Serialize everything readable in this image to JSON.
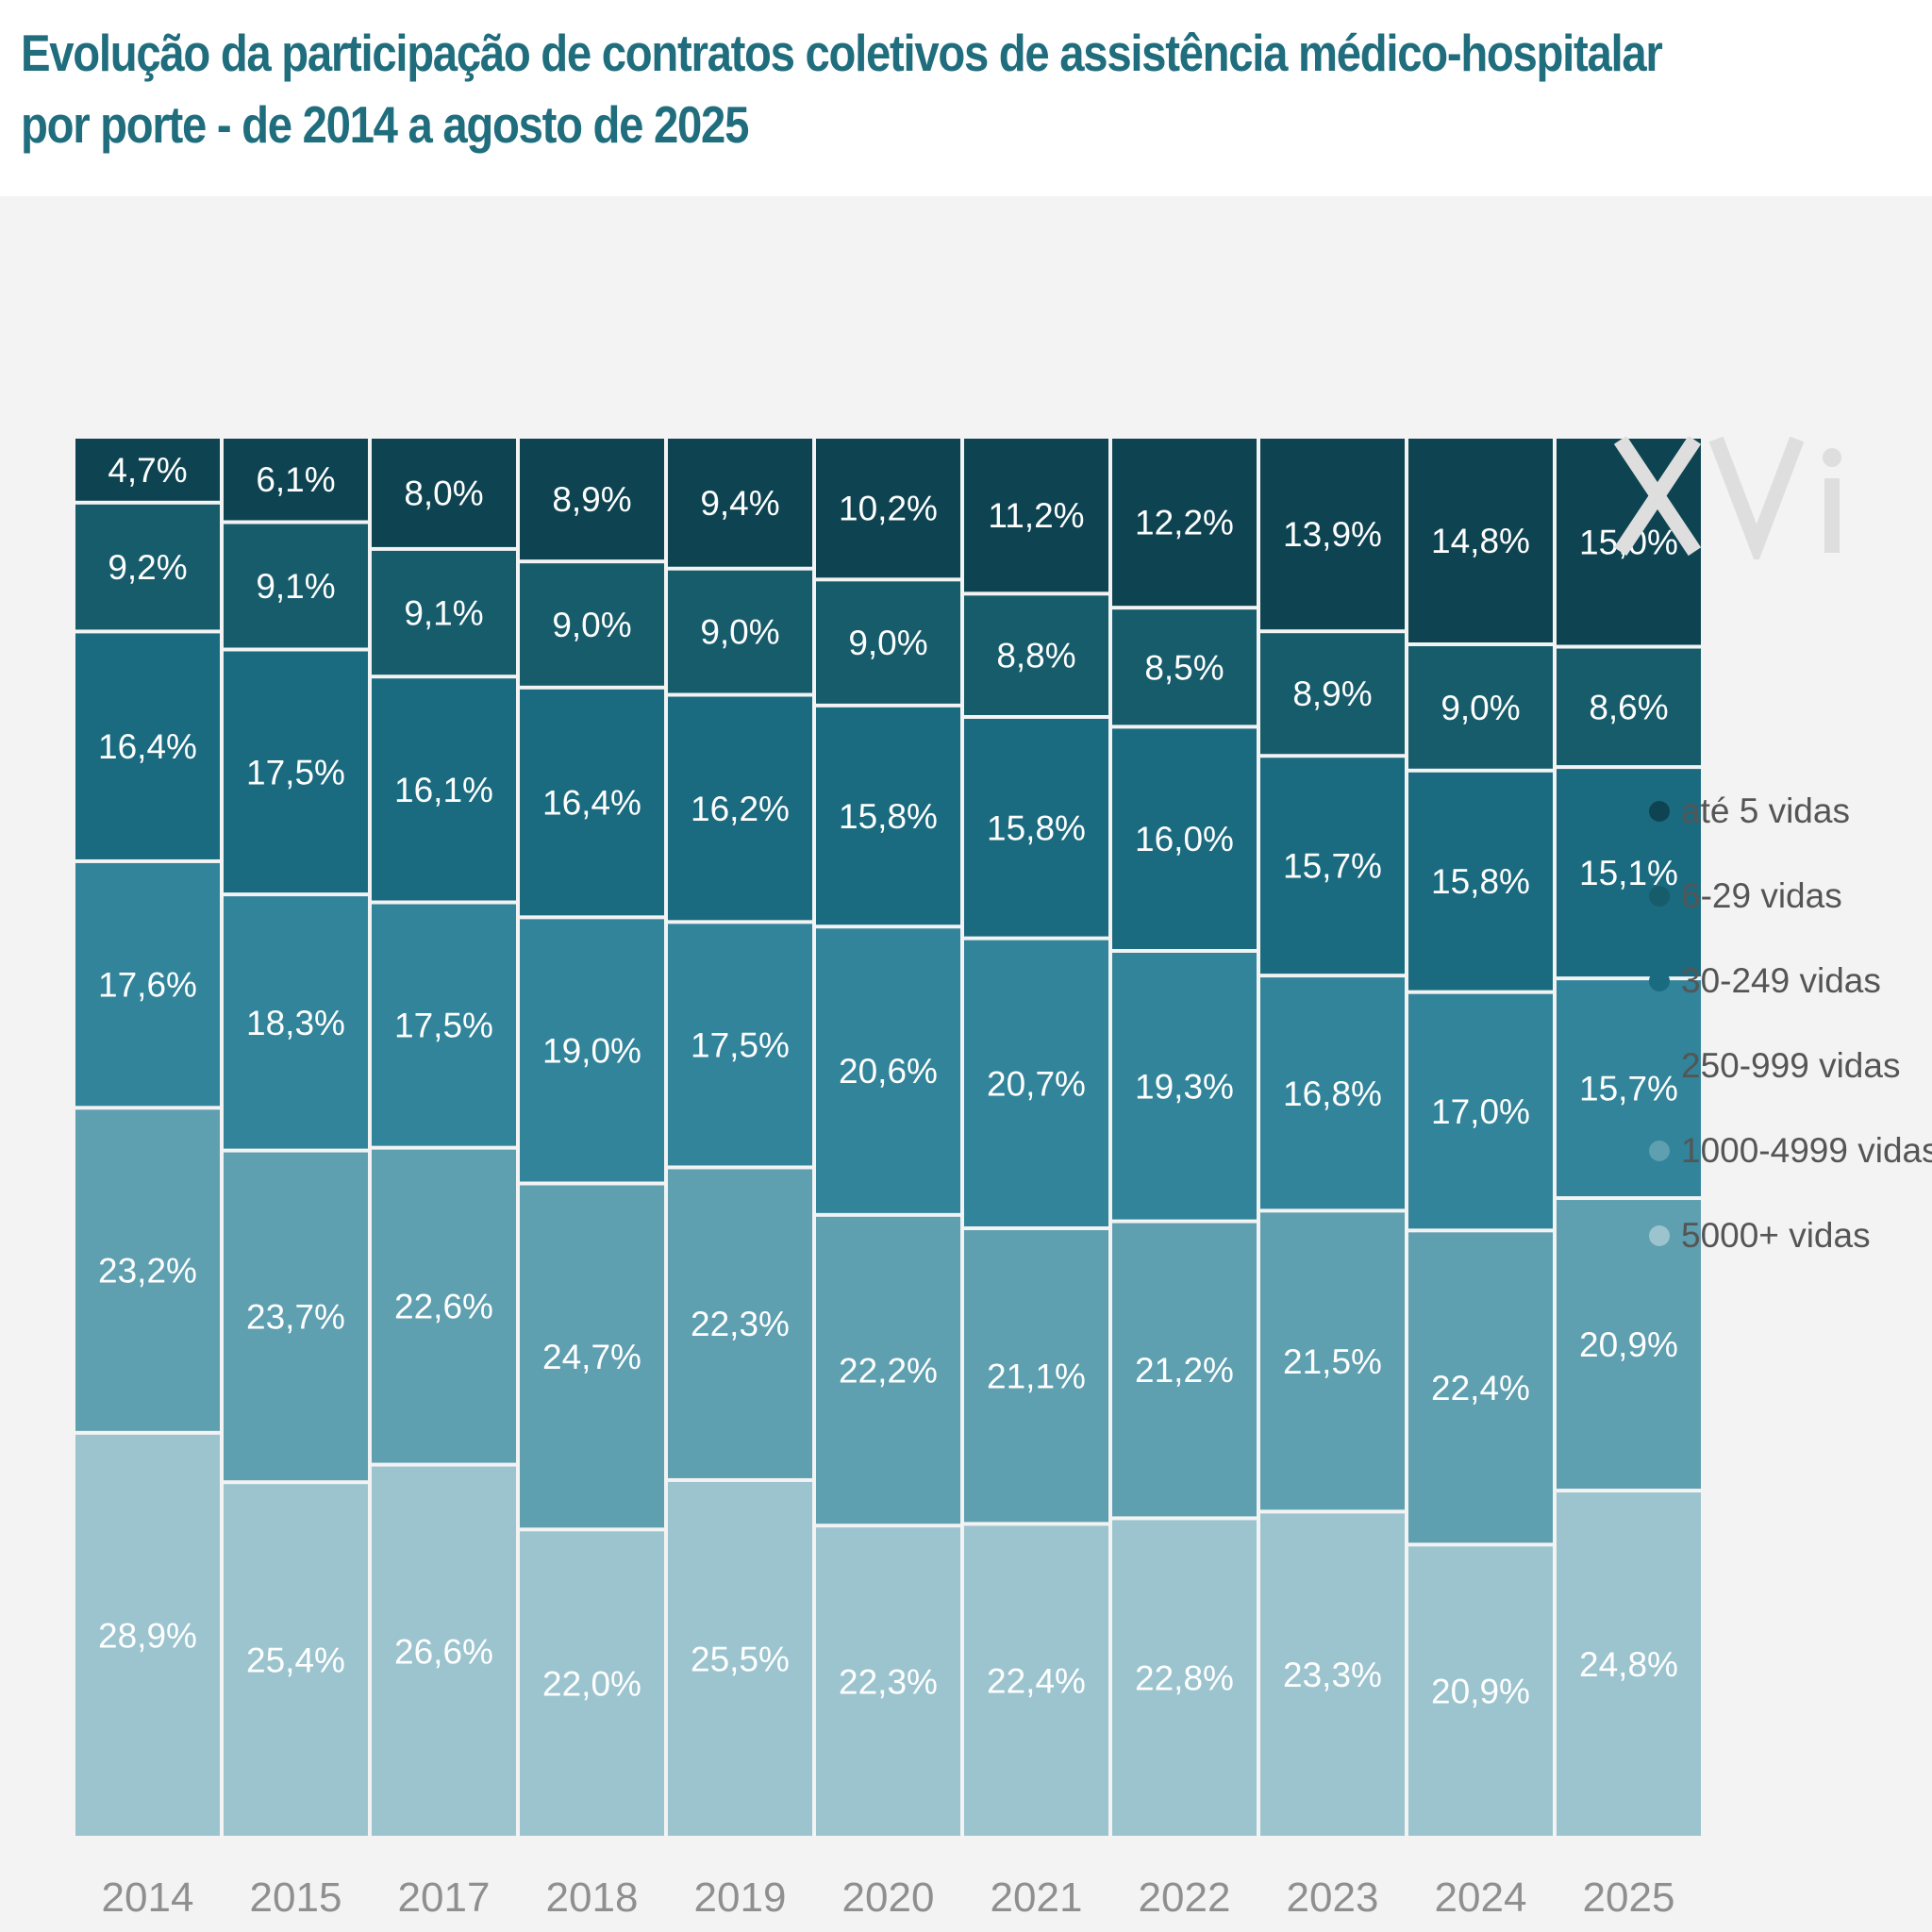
{
  "title": {
    "line1": "Evolução da participação de contratos coletivos de assistência médico-hospitalar",
    "line2": "por porte - de 2014 a agosto de 2025"
  },
  "watermark": "XVi",
  "colors": {
    "background": "#ffffff",
    "panel": "#f3f3f3",
    "title": "#1f6d7d",
    "value_labels": "#ffffff",
    "year_labels": "#8f8f8f"
  },
  "chart_data": {
    "type": "bar",
    "stacked": true,
    "normalized_percent": true,
    "title": "Evolução da participação de contratos coletivos de assistência médico-hospitalar por porte - de 2014 a agosto de 2025",
    "xlabel": "",
    "ylabel": "",
    "ylim": [
      0,
      100
    ],
    "grid": false,
    "legend_position": "right",
    "categories": [
      "2014",
      "2015",
      "2017",
      "2018",
      "2019",
      "2020",
      "2021",
      "2022",
      "2023",
      "2024",
      "2025"
    ],
    "series": [
      {
        "name": "até 5 vidas",
        "color": "#0e4452",
        "values": [
          4.7,
          6.1,
          8.0,
          8.9,
          9.4,
          10.2,
          11.2,
          12.2,
          13.9,
          14.8,
          15.0
        ],
        "labels": [
          "4,7%",
          "6,1%",
          "8,0%",
          "8,9%",
          "9,4%",
          "10,2%",
          "11,2%",
          "12,2%",
          "13,9%",
          "14,8%",
          "15,0%"
        ]
      },
      {
        "name": "6-29 vidas",
        "color": "#165c6b",
        "values": [
          9.2,
          9.1,
          9.1,
          9.0,
          9.0,
          9.0,
          8.8,
          8.5,
          8.9,
          9.0,
          8.6
        ],
        "labels": [
          "9,2%",
          "9,1%",
          "9,1%",
          "9,0%",
          "9,0%",
          "9,0%",
          "8,8%",
          "8,5%",
          "8,9%",
          "9,0%",
          "8,6%"
        ]
      },
      {
        "name": "30-249 vidas",
        "color": "#1b6b80",
        "values": [
          16.4,
          17.5,
          16.1,
          16.4,
          16.2,
          15.8,
          15.8,
          16.0,
          15.7,
          15.8,
          15.1
        ],
        "labels": [
          "16,4%",
          "17,5%",
          "16,1%",
          "16,4%",
          "16,2%",
          "15,8%",
          "15,8%",
          "16,0%",
          "15,7%",
          "15,8%",
          "15,1%"
        ]
      },
      {
        "name": "250-999 vidas",
        "color": "#31849a",
        "values": [
          17.6,
          18.3,
          17.5,
          19.0,
          17.5,
          20.6,
          20.7,
          19.3,
          16.8,
          17.0,
          15.7
        ],
        "labels": [
          "17,6%",
          "18,3%",
          "17,5%",
          "19,0%",
          "17,5%",
          "20,6%",
          "20,7%",
          "19,3%",
          "16,8%",
          "17,0%",
          "15,7%"
        ]
      },
      {
        "name": "1000-4999 vidas",
        "color": "#5e9fb0",
        "values": [
          23.2,
          23.7,
          22.6,
          24.7,
          22.3,
          22.2,
          21.1,
          21.2,
          21.5,
          22.4,
          20.9
        ],
        "labels": [
          "23,2%",
          "23,7%",
          "22,6%",
          "24,7%",
          "22,3%",
          "22,2%",
          "21,1%",
          "21,2%",
          "21,5%",
          "22,4%",
          "20,9%"
        ]
      },
      {
        "name": "5000+ vidas",
        "color": "#9cc4cf",
        "values": [
          28.9,
          25.4,
          26.6,
          22.0,
          25.5,
          22.3,
          22.4,
          22.8,
          23.3,
          20.9,
          24.8
        ],
        "labels": [
          "28,9%",
          "25,4%",
          "26,6%",
          "22,0%",
          "25,5%",
          "22,3%",
          "22,4%",
          "22,8%",
          "23,3%",
          "20,9%",
          "24,8%"
        ]
      }
    ]
  }
}
